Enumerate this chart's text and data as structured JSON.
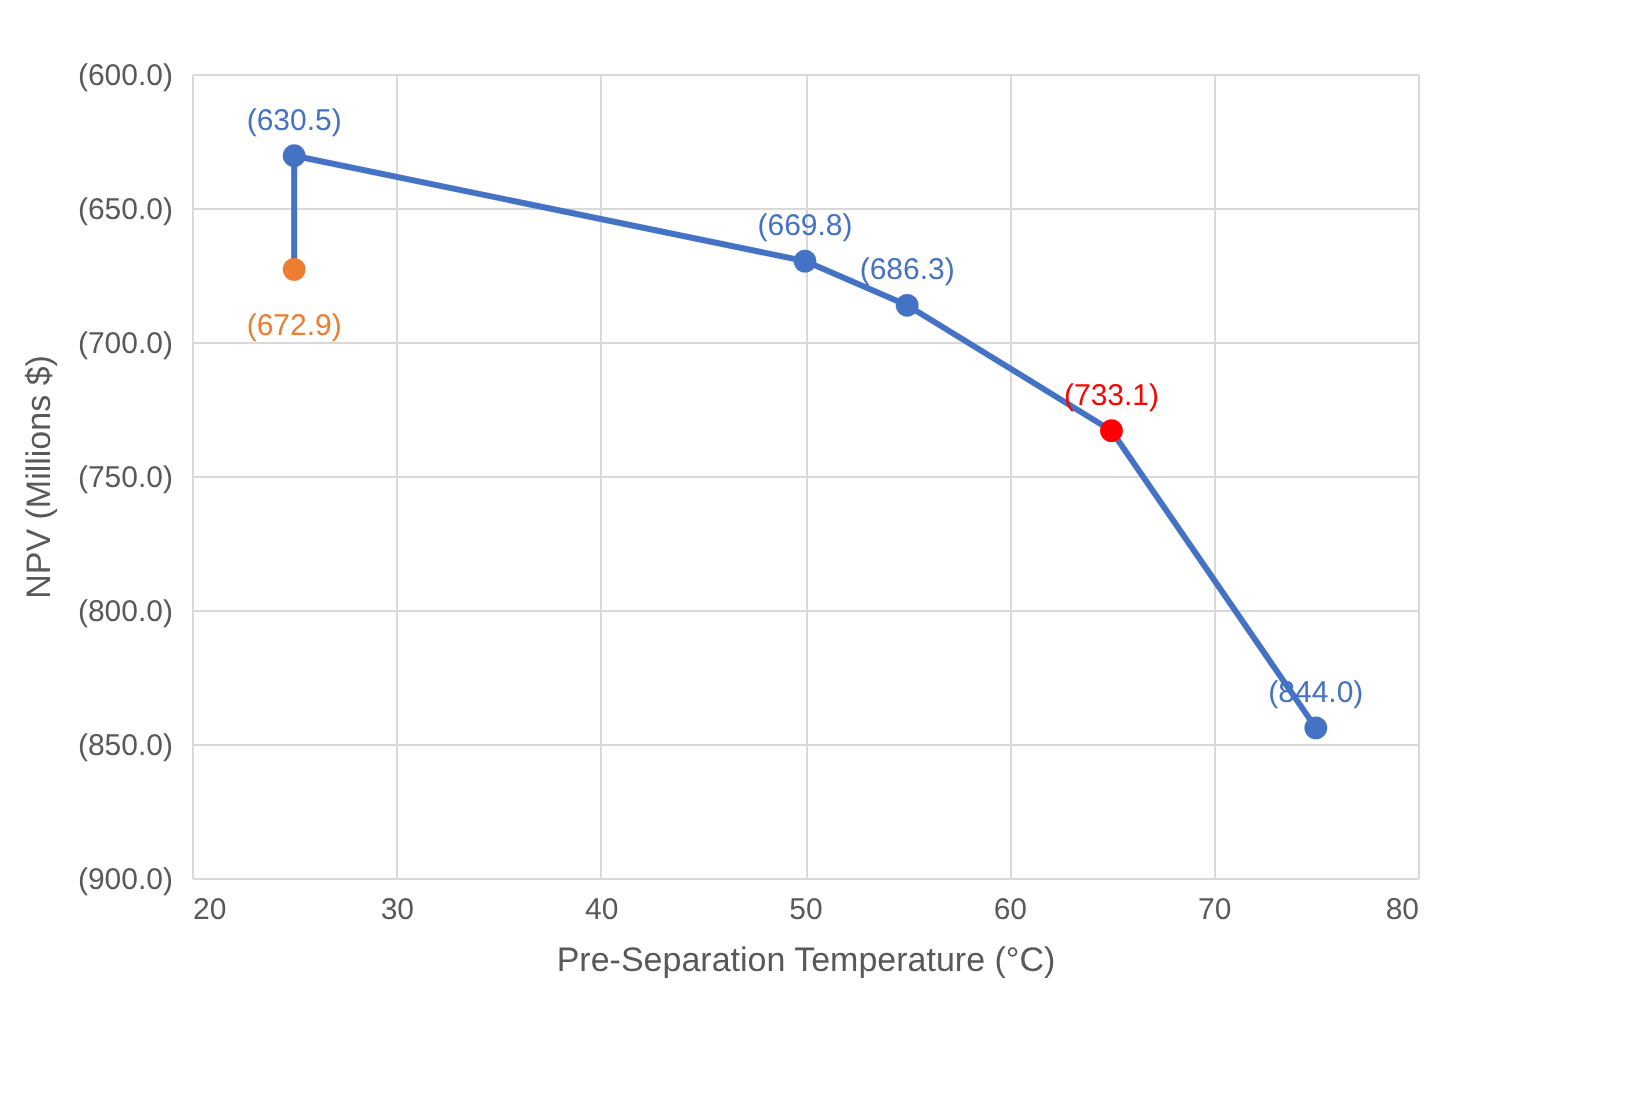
{
  "chart_data": {
    "type": "line",
    "xlabel": "Pre-Separation Temperature (°C)",
    "ylabel": "NPV (Millions $)",
    "x": [
      25,
      25,
      50,
      55,
      65,
      75
    ],
    "series": [
      {
        "color": "#4472c4",
        "colors": [
          "#ed7d31",
          "#4472c4",
          "#4472c4",
          "#4472c4",
          "#ff0000",
          "#4472c4"
        ],
        "values": [
          -672.9,
          -630.5,
          -669.8,
          -686.3,
          -733.1,
          -844.0
        ],
        "value_labels": [
          "(672.9)",
          "(630.5)",
          "(669.8)",
          "(686.3)",
          "(733.1)",
          "(844.0)"
        ]
      }
    ],
    "xlim": [
      20,
      80
    ],
    "xticks": [
      20,
      30,
      40,
      50,
      60,
      70,
      80
    ],
    "ylim": [
      -900,
      -600
    ],
    "yticks": [
      {
        "value": -900,
        "label": "(900.0)"
      },
      {
        "value": -850,
        "label": "(850.0)"
      },
      {
        "value": -800,
        "label": "(800.0)"
      },
      {
        "value": -750,
        "label": "(750.0)"
      },
      {
        "value": -700,
        "label": "(700.0)"
      },
      {
        "value": -650,
        "label": "(650.0)"
      },
      {
        "value": -600,
        "label": "(600.0)"
      }
    ],
    "grid": true,
    "marker": "circle",
    "line_style": "solid"
  }
}
